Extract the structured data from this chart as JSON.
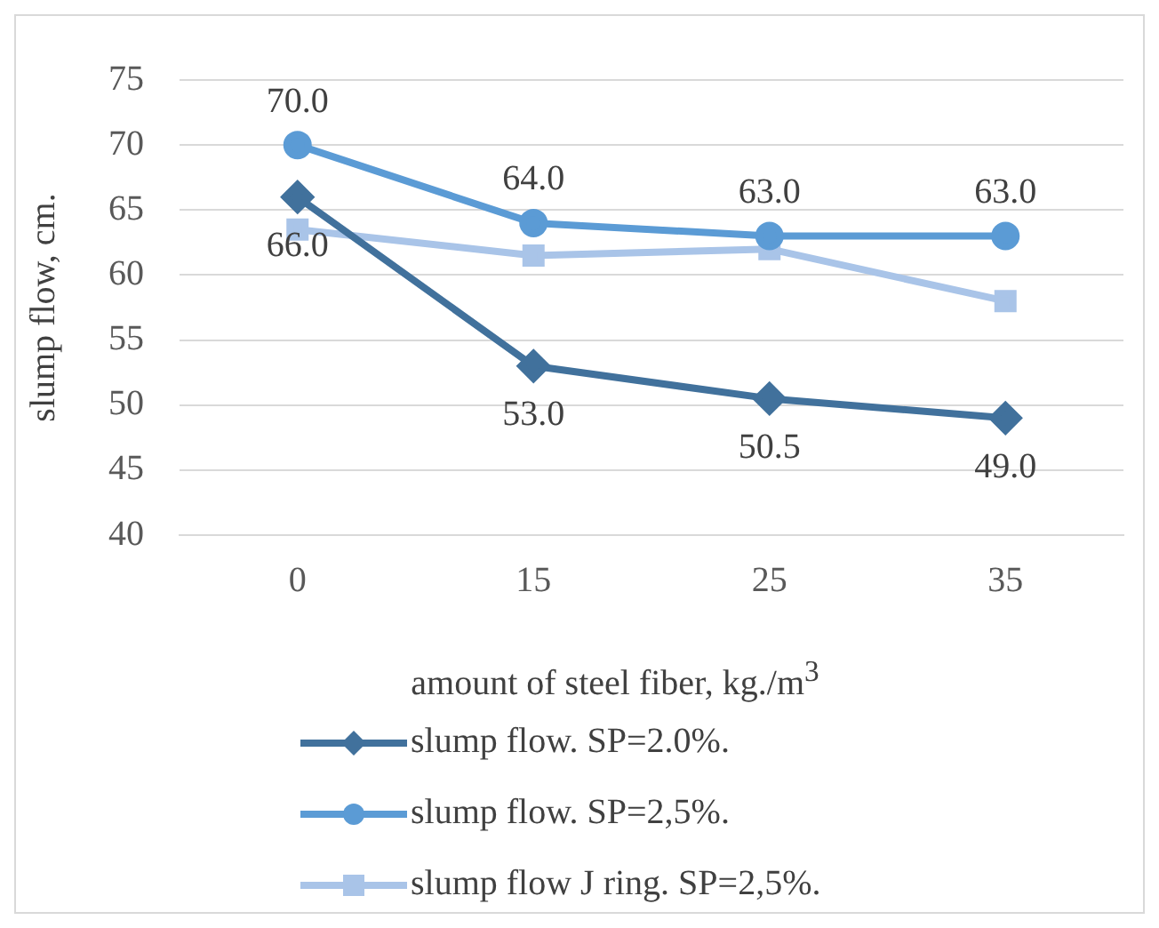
{
  "chart_data": {
    "type": "line",
    "xlabel": "amount of steel fiber, kg./m$^{3}$",
    "ylabel": "slump flow, cm.",
    "categories": [
      "0",
      "15",
      "25",
      "35"
    ],
    "ylim": [
      40,
      75
    ],
    "yticks": [
      40,
      45,
      50,
      55,
      60,
      65,
      70,
      75
    ],
    "grid": "y",
    "legend": "bottom",
    "series": [
      {
        "name": "slump flow. SP=2.0%.",
        "color": "#41719c",
        "marker": "diamond",
        "values": [
          66,
          53,
          50.5,
          49
        ],
        "value_labels": [
          "66.0",
          "53.0",
          "50.5",
          "49.0"
        ]
      },
      {
        "name": "slump flow. SP=2,5%.",
        "color": "#5b9bd5",
        "marker": "circle",
        "values": [
          70,
          64,
          63,
          63
        ],
        "value_labels": [
          "70.0",
          "64.0",
          "63.0",
          "63.0"
        ]
      },
      {
        "name": "slump flow J ring. SP=2,5%.",
        "color": "#a9c4e8",
        "marker": "square",
        "values": [
          63.5,
          61.5,
          62,
          58
        ]
      }
    ]
  }
}
